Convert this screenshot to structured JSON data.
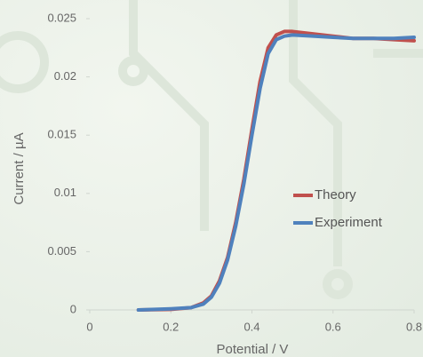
{
  "chart_data": {
    "type": "line",
    "x_label": "Potential / V",
    "y_label": "Current / µA",
    "x": [
      0.12,
      0.2,
      0.25,
      0.28,
      0.3,
      0.32,
      0.34,
      0.36,
      0.38,
      0.4,
      0.42,
      0.44,
      0.46,
      0.48,
      0.5,
      0.55,
      0.6,
      0.65,
      0.7,
      0.75,
      0.8
    ],
    "series": [
      {
        "name": "Theory",
        "color": "#c0504d",
        "values": [
          0,
          5e-05,
          0.0002,
          0.0006,
          0.0012,
          0.0025,
          0.0045,
          0.0075,
          0.0112,
          0.0155,
          0.0196,
          0.0225,
          0.0236,
          0.0239,
          0.0239,
          0.0237,
          0.0235,
          0.0233,
          0.0233,
          0.0232,
          0.0231
        ]
      },
      {
        "name": "Experiment",
        "color": "#4f81bd",
        "values": [
          0,
          0.0001,
          0.0002,
          0.0005,
          0.0011,
          0.0023,
          0.0043,
          0.0072,
          0.0108,
          0.015,
          0.019,
          0.022,
          0.0232,
          0.0235,
          0.0236,
          0.0235,
          0.0234,
          0.0233,
          0.0233,
          0.0233,
          0.0234
        ]
      }
    ],
    "xlim": [
      0,
      0.8
    ],
    "xticks": [
      0,
      0.2,
      0.4,
      0.6,
      0.8
    ],
    "ylim": [
      0,
      0.025
    ],
    "yticks": [
      0,
      0.005,
      0.01,
      0.015,
      0.02,
      0.025
    ],
    "legend": "right"
  }
}
